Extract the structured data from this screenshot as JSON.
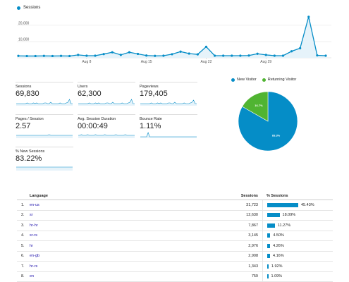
{
  "legend": {
    "label": "Sessions",
    "color": "#058dc7"
  },
  "chart_data": {
    "type": "area",
    "series": [
      {
        "name": "Sessions",
        "values": [
          1200,
          1100,
          1100,
          1200,
          1100,
          1200,
          1100,
          1800,
          1300,
          1300,
          2300,
          3400,
          1800,
          3400,
          2400,
          1400,
          1200,
          1300,
          2200,
          3800,
          2600,
          2100,
          6800,
          1300,
          1300,
          1300,
          1300,
          1400,
          2500,
          1800,
          1300,
          1300,
          4000,
          5900,
          25200,
          1500,
          1300
        ]
      }
    ],
    "x_tick_labels": [
      "Aug 8",
      "Aug 15",
      "Aug 22",
      "Aug 29"
    ],
    "x_tick_indices": [
      8,
      15,
      22,
      29
    ],
    "y_tick_labels": [
      "20,000",
      "10,000"
    ],
    "y_tick_values": [
      20000,
      10000
    ],
    "ylim": [
      0,
      20000
    ],
    "grid": true,
    "colors": {
      "line": "#058dc7",
      "fill": "#e6f3fa"
    }
  },
  "metrics": [
    {
      "label": "Sessions",
      "value": "69,830"
    },
    {
      "label": "Users",
      "value": "62,300"
    },
    {
      "label": "Pageviews",
      "value": "179,405"
    },
    {
      "label": "Pages / Session",
      "value": "2.57"
    },
    {
      "label": "Avg. Session Duration",
      "value": "00:00:49"
    },
    {
      "label": "Bounce Rate",
      "value": "1.11%"
    },
    {
      "label": "% New Sessions",
      "value": "83.22%"
    }
  ],
  "pie": {
    "legend": [
      {
        "label": "New Visitor",
        "color": "#058dc7"
      },
      {
        "label": "Returning Visitor",
        "color": "#50b432"
      }
    ],
    "slices": [
      {
        "label": "83.3%",
        "value": 83.3,
        "color": "#058dc7"
      },
      {
        "label": "16.7%",
        "value": 16.7,
        "color": "#50b432"
      }
    ]
  },
  "table": {
    "headers": {
      "language": "Language",
      "sessions": "Sessions",
      "pct": "% Sessions"
    },
    "rows": [
      {
        "idx": "1.",
        "lang": "en-us",
        "sessions": "31,723",
        "pct": "45.43%",
        "pct_value": 45.43
      },
      {
        "idx": "2.",
        "lang": "sr",
        "sessions": "12,630",
        "pct": "18.09%",
        "pct_value": 18.09
      },
      {
        "idx": "3.",
        "lang": "hr-hr",
        "sessions": "7,867",
        "pct": "11.27%",
        "pct_value": 11.27
      },
      {
        "idx": "4.",
        "lang": "sr-rs",
        "sessions": "3,145",
        "pct": "4.50%",
        "pct_value": 4.5
      },
      {
        "idx": "5.",
        "lang": "hr",
        "sessions": "2,976",
        "pct": "4.26%",
        "pct_value": 4.26
      },
      {
        "idx": "6.",
        "lang": "en-gb",
        "sessions": "2,908",
        "pct": "4.16%",
        "pct_value": 4.16
      },
      {
        "idx": "7.",
        "lang": "hr-rs",
        "sessions": "1,343",
        "pct": "1.92%",
        "pct_value": 1.92
      },
      {
        "idx": "8.",
        "lang": "en",
        "sessions": "759",
        "pct": "1.09%",
        "pct_value": 1.09
      }
    ]
  }
}
